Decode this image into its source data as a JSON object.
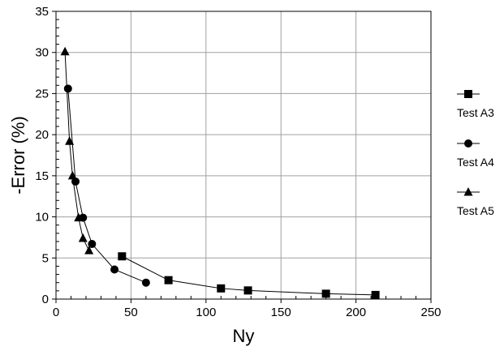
{
  "chart_data": {
    "type": "line",
    "title": "",
    "xlabel": "Ny",
    "ylabel": "-Error (%)",
    "xlim": [
      0,
      250
    ],
    "ylim": [
      0,
      35
    ],
    "xticks": [
      0,
      50,
      100,
      150,
      200,
      250
    ],
    "yticks": [
      0,
      5,
      10,
      15,
      20,
      25,
      30,
      35
    ],
    "grid": true,
    "legend_position": "right",
    "series": [
      {
        "name": "Test A3",
        "marker": "square",
        "points": [
          {
            "x": 44,
            "y": 5.2
          },
          {
            "x": 75,
            "y": 2.3
          },
          {
            "x": 110,
            "y": 1.3
          },
          {
            "x": 128,
            "y": 1.05
          },
          {
            "x": 180,
            "y": 0.65
          },
          {
            "x": 213,
            "y": 0.5
          }
        ]
      },
      {
        "name": "Test A4",
        "marker": "circle",
        "points": [
          {
            "x": 8,
            "y": 25.6
          },
          {
            "x": 13,
            "y": 14.3
          },
          {
            "x": 18,
            "y": 9.9
          },
          {
            "x": 24,
            "y": 6.7
          },
          {
            "x": 39,
            "y": 3.6
          },
          {
            "x": 60,
            "y": 2.0
          }
        ]
      },
      {
        "name": "Test A5",
        "marker": "triangle",
        "points": [
          {
            "x": 6,
            "y": 30.1
          },
          {
            "x": 9,
            "y": 19.2
          },
          {
            "x": 11,
            "y": 15.0
          },
          {
            "x": 15,
            "y": 9.9
          },
          {
            "x": 18,
            "y": 7.4
          },
          {
            "x": 22,
            "y": 5.9
          }
        ]
      }
    ],
    "colors": {
      "line": "#000000",
      "grid": "#a0a0a0",
      "marker": "#000000"
    }
  }
}
